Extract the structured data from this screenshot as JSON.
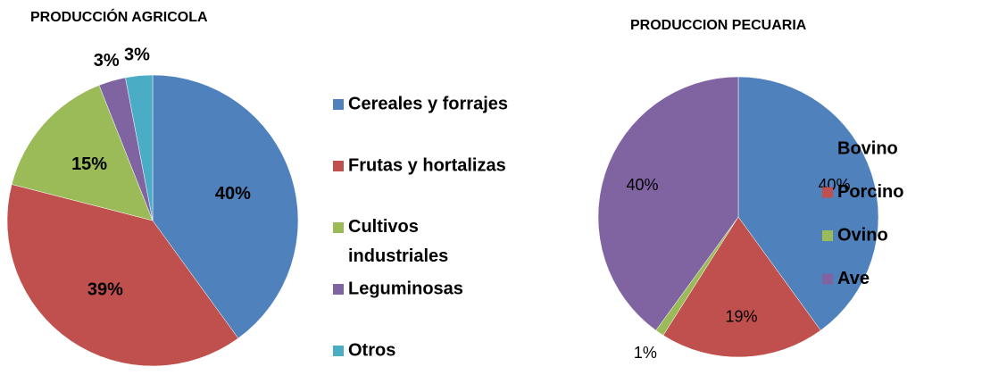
{
  "chart_data": [
    {
      "type": "pie",
      "title": "PRODUCCIÓN AGRICOLA",
      "categories": [
        "Cereales y forrajes",
        "Frutas y hortalizas",
        "Cultivos industriales",
        "Leguminosas",
        "Otros"
      ],
      "values": [
        40,
        39,
        15,
        3,
        3
      ],
      "value_labels": [
        "40%",
        "39%",
        "15%",
        "3%",
        "3%"
      ],
      "colors": [
        "#4f81bd",
        "#c0504d",
        "#9bbb59",
        "#8064a2",
        "#4bacc6"
      ],
      "legend": "right"
    },
    {
      "type": "pie",
      "title": "PRODUCCION PECUARIA",
      "categories": [
        "Bovino",
        "Porcino",
        "Ovino",
        "Ave"
      ],
      "values": [
        40,
        19,
        1,
        40
      ],
      "value_labels": [
        "40%",
        "19%",
        "1%",
        "40%"
      ],
      "colors": [
        "#4f81bd",
        "#c0504d",
        "#9bbb59",
        "#8064a2"
      ],
      "legend": "right"
    }
  ]
}
